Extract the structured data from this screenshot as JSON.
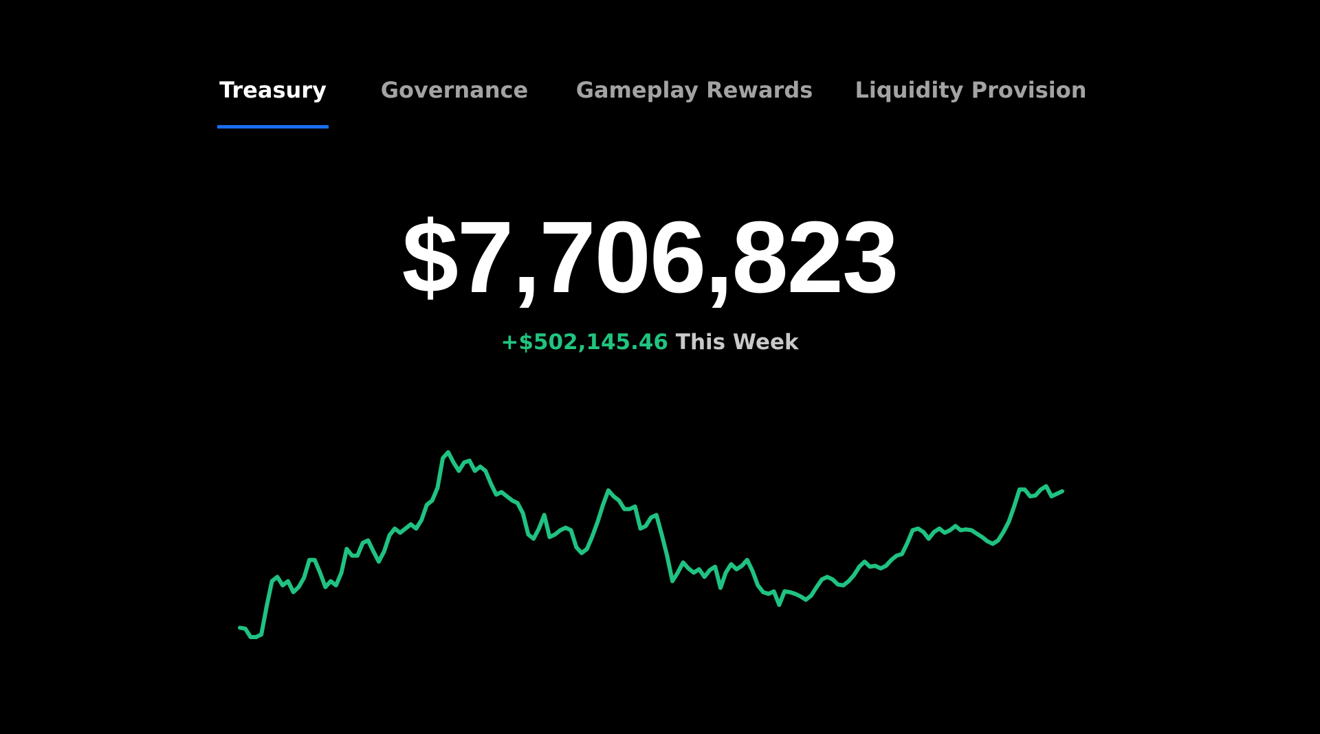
{
  "tabs": [
    "Treasury",
    "Governance",
    "Gameplay Rewards",
    "Liquidity Provision"
  ],
  "balance": "$7,706,823",
  "change": "+$502,145.46",
  "period": "This Week",
  "chart_data": {
    "type": "line",
    "color": "#20c281",
    "values": [
      55,
      54,
      44,
      44,
      47,
      80,
      110,
      115,
      105,
      110,
      97,
      103,
      114,
      135,
      135,
      120,
      103,
      110,
      105,
      120,
      148,
      140,
      140,
      155,
      158,
      145,
      133,
      145,
      164,
      172,
      167,
      172,
      177,
      172,
      182,
      200,
      205,
      220,
      255,
      262,
      250,
      240,
      250,
      252,
      240,
      245,
      240,
      225,
      212,
      215,
      210,
      205,
      202,
      190,
      165,
      160,
      172,
      188,
      162,
      165,
      170,
      173,
      170,
      150,
      143,
      148,
      163,
      180,
      200,
      217,
      210,
      205,
      195,
      195,
      198,
      172,
      175,
      185,
      188,
      165,
      140,
      110,
      120,
      132,
      125,
      120,
      124,
      115,
      123,
      127,
      102,
      120,
      130,
      124,
      128,
      135,
      122,
      105,
      97,
      95,
      98,
      82,
      98,
      97,
      95,
      92,
      88,
      93,
      103,
      112,
      115,
      112,
      106,
      105,
      110,
      117,
      127,
      133,
      127,
      128,
      125,
      128,
      135,
      140,
      142,
      155,
      170,
      172,
      168,
      160,
      168,
      172,
      167,
      170,
      175,
      170,
      171,
      170,
      166,
      162,
      157,
      154,
      158,
      168,
      180,
      198,
      218,
      218,
      210,
      211,
      218,
      222,
      210,
      213,
      216
    ]
  }
}
